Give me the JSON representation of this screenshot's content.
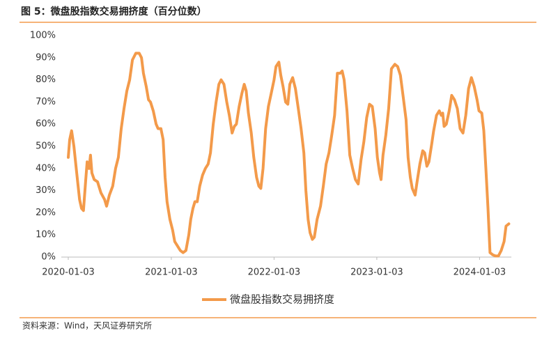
{
  "header": {
    "title": "图 5：微盘股指数交易拥挤度（百分位数）"
  },
  "footer": {
    "source": "资料来源：Wind，天风证券研究所"
  },
  "chart_data": {
    "type": "line",
    "grid": false,
    "legend": "bottom",
    "x": [
      "2020-01-03",
      "2020-01-08",
      "2020-01-15",
      "2020-01-23",
      "2020-02-02",
      "2020-02-12",
      "2020-02-19",
      "2020-02-26",
      "2020-03-05",
      "2020-03-10",
      "2020-03-17",
      "2020-03-22",
      "2020-03-27",
      "2020-04-04",
      "2020-04-16",
      "2020-04-28",
      "2020-05-11",
      "2020-05-18",
      "2020-05-28",
      "2020-06-09",
      "2020-06-19",
      "2020-06-29",
      "2020-07-09",
      "2020-07-19",
      "2020-07-29",
      "2020-08-08",
      "2020-08-18",
      "2020-08-30",
      "2020-09-11",
      "2020-09-19",
      "2020-09-26",
      "2020-10-06",
      "2020-10-14",
      "2020-10-21",
      "2020-10-31",
      "2020-11-10",
      "2020-11-17",
      "2020-11-27",
      "2020-12-05",
      "2020-12-12",
      "2020-12-19",
      "2020-12-29",
      "2021-01-08",
      "2021-01-15",
      "2021-01-25",
      "2021-02-04",
      "2021-02-14",
      "2021-02-24",
      "2021-03-06",
      "2021-03-13",
      "2021-03-21",
      "2021-03-28",
      "2021-04-05",
      "2021-04-14",
      "2021-04-24",
      "2021-05-04",
      "2021-05-14",
      "2021-05-22",
      "2021-06-01",
      "2021-06-11",
      "2021-06-21",
      "2021-06-29",
      "2021-07-09",
      "2021-07-19",
      "2021-07-28",
      "2021-08-07",
      "2021-08-15",
      "2021-08-22",
      "2021-09-01",
      "2021-09-11",
      "2021-09-19",
      "2021-09-26",
      "2021-10-04",
      "2021-10-14",
      "2021-10-23",
      "2021-11-02",
      "2021-11-10",
      "2021-11-17",
      "2021-11-25",
      "2021-12-04",
      "2021-12-14",
      "2021-12-24",
      "2022-01-03",
      "2022-01-10",
      "2022-01-20",
      "2022-01-27",
      "2022-02-04",
      "2022-02-13",
      "2022-02-21",
      "2022-02-28",
      "2022-03-10",
      "2022-03-20",
      "2022-03-30",
      "2022-04-09",
      "2022-04-19",
      "2022-04-26",
      "2022-05-04",
      "2022-05-11",
      "2022-05-19",
      "2022-05-26",
      "2022-06-05",
      "2022-06-17",
      "2022-06-27",
      "2022-07-07",
      "2022-07-17",
      "2022-07-27",
      "2022-08-06",
      "2022-08-16",
      "2022-08-26",
      "2022-09-02",
      "2022-09-09",
      "2022-09-19",
      "2022-09-29",
      "2022-10-09",
      "2022-10-19",
      "2022-10-29",
      "2022-11-08",
      "2022-11-18",
      "2022-11-28",
      "2022-12-08",
      "2022-12-18",
      "2022-12-28",
      "2023-01-05",
      "2023-01-13",
      "2023-01-18",
      "2023-01-25",
      "2023-02-04",
      "2023-02-14",
      "2023-02-24",
      "2023-03-08",
      "2023-03-18",
      "2023-03-28",
      "2023-04-07",
      "2023-04-17",
      "2023-04-24",
      "2023-05-02",
      "2023-05-09",
      "2023-05-19",
      "2023-05-26",
      "2023-06-05",
      "2023-06-15",
      "2023-06-22",
      "2023-06-30",
      "2023-07-07",
      "2023-07-17",
      "2023-07-24",
      "2023-08-03",
      "2023-08-13",
      "2023-08-20",
      "2023-08-25",
      "2023-08-30",
      "2023-09-07",
      "2023-09-17",
      "2023-09-26",
      "2023-10-06",
      "2023-10-16",
      "2023-10-26",
      "2023-11-05",
      "2023-11-15",
      "2023-11-25",
      "2023-12-05",
      "2023-12-15",
      "2023-12-25",
      "2024-01-01",
      "2024-01-11",
      "2024-01-18",
      "2024-01-25",
      "2024-02-02",
      "2024-02-09",
      "2024-02-19",
      "2024-02-29",
      "2024-03-10",
      "2024-03-20",
      "2024-03-30",
      "2024-04-06",
      "2024-04-16"
    ],
    "series": [
      {
        "name": "微盘股指数交易拥挤度",
        "color": "#F39A4A",
        "values": [
          45,
          53,
          57,
          50,
          38,
          26,
          22,
          21,
          35,
          43,
          40,
          46,
          38,
          35,
          34,
          29,
          26,
          23,
          28,
          32,
          40,
          45,
          58,
          67,
          75,
          80,
          89,
          92,
          92,
          90,
          83,
          77,
          71,
          70,
          66,
          60,
          58,
          58,
          53,
          36,
          25,
          17,
          12,
          7,
          5,
          3,
          2,
          3,
          10,
          17,
          22,
          25,
          25,
          32,
          37,
          40,
          42,
          47,
          60,
          70,
          78,
          80,
          78,
          70,
          64,
          56,
          59,
          60,
          68,
          74,
          78,
          75,
          65,
          56,
          45,
          36,
          32,
          31,
          40,
          58,
          68,
          74,
          80,
          86,
          88,
          82,
          77,
          70,
          69,
          78,
          81,
          76,
          67,
          58,
          47,
          30,
          17,
          11,
          8,
          9,
          17,
          23,
          32,
          42,
          47,
          55,
          64,
          83,
          83,
          84,
          80,
          66,
          46,
          40,
          35,
          33,
          44,
          52,
          63,
          69,
          68,
          58,
          45,
          38,
          35,
          46,
          55,
          67,
          85,
          87,
          86,
          82,
          72,
          62,
          45,
          36,
          31,
          28,
          34,
          42,
          48,
          47,
          41,
          43,
          51,
          57,
          64,
          66,
          64,
          65,
          59,
          60,
          66,
          73,
          71,
          67,
          58,
          56,
          64,
          76,
          81,
          77,
          71,
          66,
          65,
          57,
          41,
          22,
          2,
          1,
          0.5,
          0.5,
          3,
          7,
          14,
          15
        ]
      }
    ],
    "xlim": [
      "2020-01-03",
      "2024-04-25"
    ],
    "xticks": [
      "2020-01-03",
      "2021-01-03",
      "2022-01-03",
      "2023-01-03",
      "2024-01-03"
    ],
    "ylim": [
      0,
      100
    ],
    "yticks": [
      {
        "value": 0,
        "label": "0%"
      },
      {
        "value": 10,
        "label": "10%"
      },
      {
        "value": 20,
        "label": "20%"
      },
      {
        "value": 30,
        "label": "30%"
      },
      {
        "value": 40,
        "label": "40%"
      },
      {
        "value": 50,
        "label": "50%"
      },
      {
        "value": 60,
        "label": "60%"
      },
      {
        "value": 70,
        "label": "70%"
      },
      {
        "value": 80,
        "label": "80%"
      },
      {
        "value": 90,
        "label": "90%"
      },
      {
        "value": 100,
        "label": "100%"
      }
    ]
  }
}
